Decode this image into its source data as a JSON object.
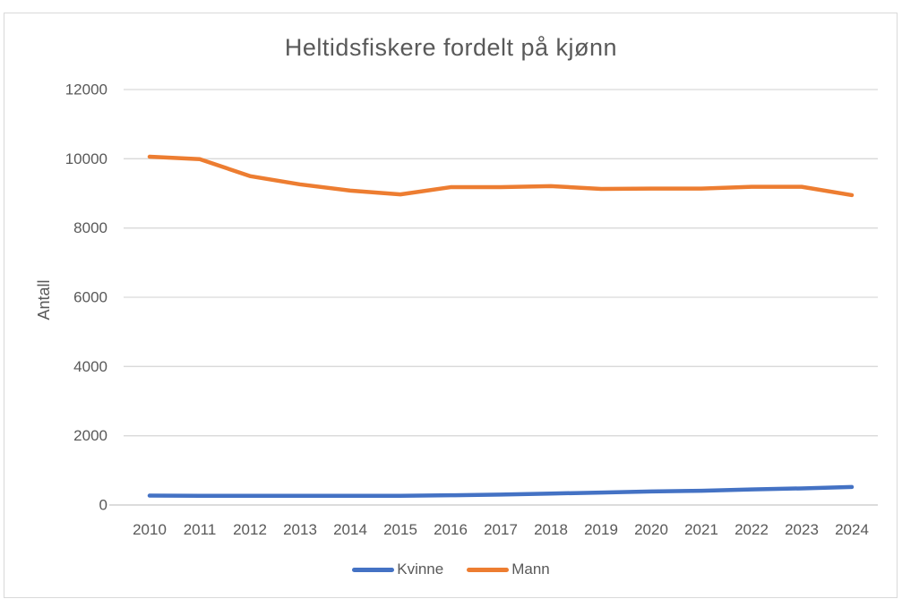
{
  "colors": {
    "accent_blue": "#4472C4",
    "accent_orange": "#ED7D31",
    "text": "#595959",
    "grid": "#D9D9D9",
    "axis": "#D0D0D0",
    "frame_border": "#D9D9D9",
    "background": "#FFFFFF"
  },
  "chart_data": {
    "type": "line",
    "title": "Heltidsfiskere fordelt på kjønn",
    "xlabel": "",
    "ylabel": "Antall",
    "ylim": [
      0,
      12000
    ],
    "ytick_step": 2000,
    "yticks": [
      0,
      2000,
      4000,
      6000,
      8000,
      10000,
      12000
    ],
    "grid": true,
    "legend_position": "bottom",
    "categories": [
      "2010",
      "2011",
      "2012",
      "2013",
      "2014",
      "2015",
      "2016",
      "2017",
      "2018",
      "2019",
      "2020",
      "2021",
      "2022",
      "2023",
      "2024"
    ],
    "series": [
      {
        "name": "Kvinne",
        "color": "#4472C4",
        "values": [
          270,
          265,
          265,
          265,
          265,
          265,
          280,
          300,
          330,
          360,
          390,
          410,
          450,
          480,
          520
        ]
      },
      {
        "name": "Mann",
        "color": "#ED7D31",
        "values": [
          10060,
          9990,
          9500,
          9260,
          9080,
          8970,
          9180,
          9180,
          9210,
          9130,
          9140,
          9140,
          9190,
          9190,
          8950
        ]
      }
    ]
  }
}
